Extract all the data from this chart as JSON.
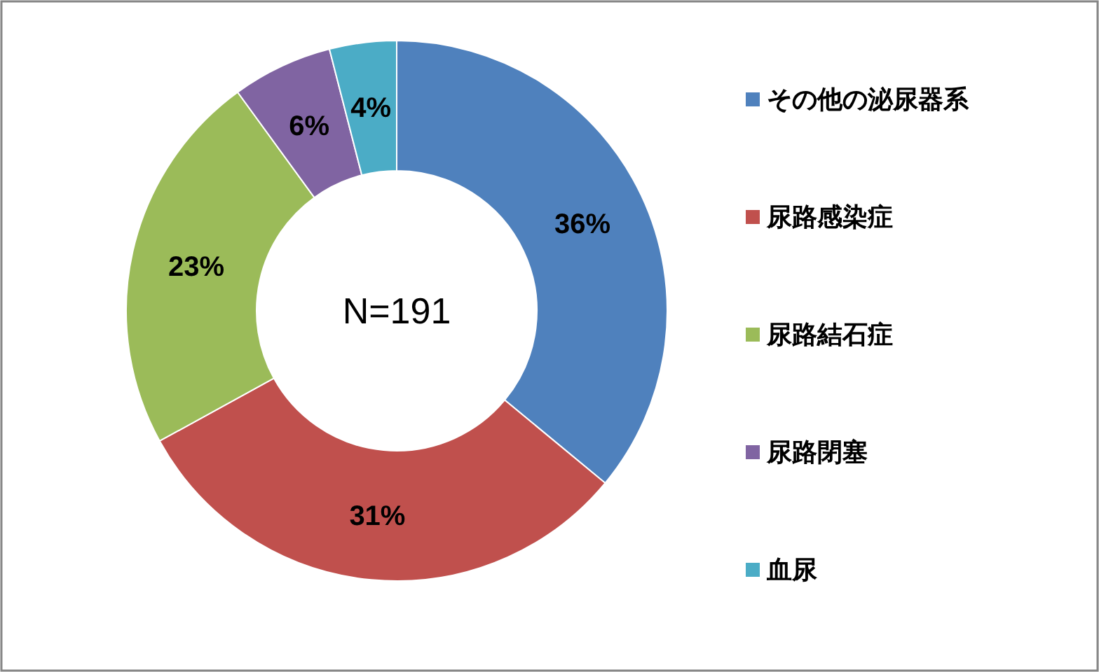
{
  "chart_data": {
    "type": "donut",
    "categories": [
      "その他の泌尿器系",
      "尿路感染症",
      "尿路結石症",
      "尿路閉塞",
      "血尿"
    ],
    "values": [
      36,
      31,
      23,
      6,
      4
    ],
    "colors": [
      "#4f81bd",
      "#c0504d",
      "#9bbb59",
      "#8064a2",
      "#4bacc6"
    ],
    "value_labels": [
      "36%",
      "31%",
      "23%",
      "6%",
      "4%"
    ],
    "annotations": [
      "N=191"
    ],
    "legend": "right"
  }
}
